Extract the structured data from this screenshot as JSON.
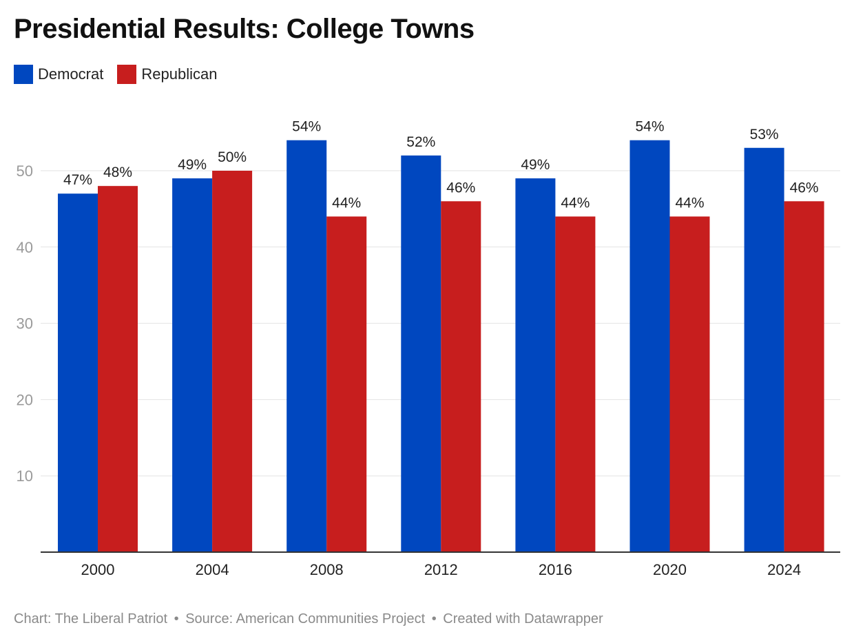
{
  "title": "Presidential Results: College Towns",
  "colors": {
    "democrat": "#0047bf",
    "republican": "#c71e1e",
    "grid": "#e2e2e2",
    "axis": "#333333",
    "tick": "#9a9a9a",
    "label": "#222222"
  },
  "legend": [
    {
      "label": "Democrat",
      "color": "#0047bf"
    },
    {
      "label": "Republican",
      "color": "#c71e1e"
    }
  ],
  "footer": {
    "chart": "Chart: The Liberal Patriot",
    "source": "Source: American Communities Project",
    "created": "Created with Datawrapper",
    "separator": "•"
  },
  "chart_data": {
    "type": "bar",
    "categories": [
      "2000",
      "2004",
      "2008",
      "2012",
      "2016",
      "2020",
      "2024"
    ],
    "series": [
      {
        "name": "Democrat",
        "values": [
          47,
          49,
          54,
          52,
          49,
          54,
          53
        ],
        "color": "#0047bf"
      },
      {
        "name": "Republican",
        "values": [
          48,
          50,
          44,
          46,
          44,
          44,
          46
        ],
        "color": "#c71e1e"
      }
    ],
    "value_suffix": "%",
    "yticks": [
      10,
      20,
      30,
      40,
      50
    ],
    "ylim": [
      0,
      59
    ],
    "grid": true,
    "legend_position": "top-left",
    "xlabel": "",
    "ylabel": ""
  }
}
